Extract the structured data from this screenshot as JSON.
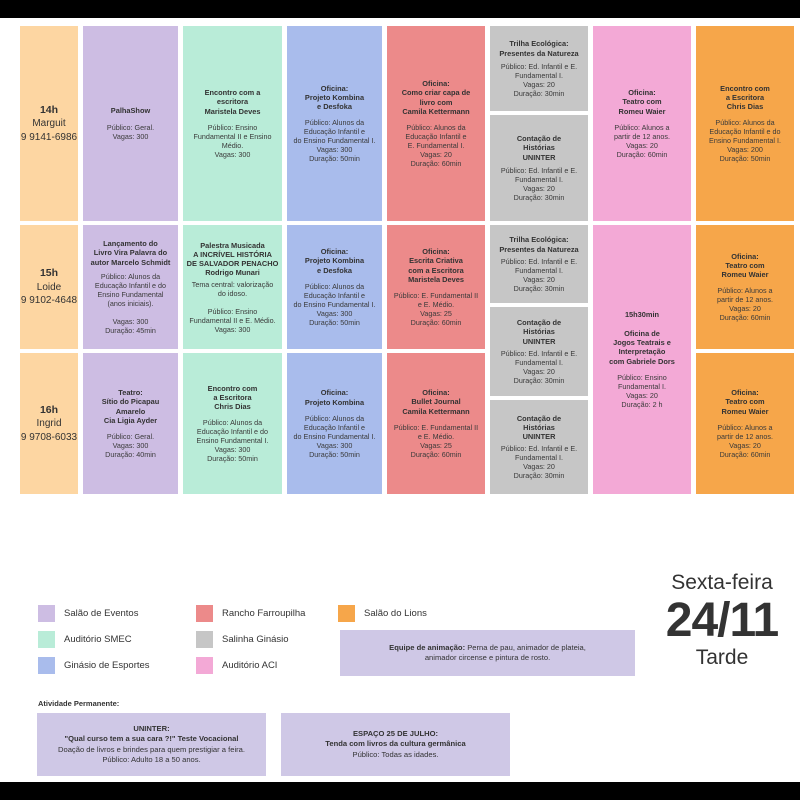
{
  "rows": [
    {
      "time": "14h",
      "name": "Marguit",
      "phone": "9 9141-6986"
    },
    {
      "time": "15h",
      "name": "Loide",
      "phone": "9 9102-4648"
    },
    {
      "time": "16h",
      "name": "Ingrid",
      "phone": "9 9708-6033"
    }
  ],
  "cells": {
    "c14_purple": {
      "title": "PalhaShow",
      "body": "Público: Geral.\nVagas: 300"
    },
    "c14_mint": {
      "title": "Encontro com a\nescritora\nMaristela Deves",
      "body": "Público: Ensino\nFundamental II e Ensino\nMédio.\nVagas: 300"
    },
    "c14_blue": {
      "title": "Oficina:\nProjeto Kombina\ne Desfoka",
      "body": "Público: Alunos da\nEducação Infantil e\ndo Ensino Fundamental I.\nVagas: 300\nDuração: 50min"
    },
    "c14_red": {
      "title": "Oficina:\nComo criar capa de\nlivro com\nCamila Kettermann",
      "body": "Público: Alunos da\nEducação Infantil e\nE. Fundamental I.\nVagas: 20\nDuração: 60min"
    },
    "c14_gray1": {
      "title": "Trilha Ecológica:\nPresentes da Natureza",
      "body": "Público: Ed. Infantil e E.\nFundamental I.\nVagas: 20\nDuração: 30min"
    },
    "c14_gray2": {
      "title": "Contação de\nHistórias\nUNINTER",
      "body": "Público: Ed. Infantil e E.\nFundamental I.\nVagas: 20\nDuração: 30min"
    },
    "c14_pink": {
      "title": "Oficina:\nTeatro com\nRomeu Waier",
      "body": "Público: Alunos a\npartir de 12 anos.\nVagas: 20\nDuração: 60min"
    },
    "c14_orange": {
      "title": "Encontro com\na Escritora\nChris Dias",
      "body": "Público: Alunos da\nEducação Infantil e do\nEnsino Fundamental I.\nVagas: 200\nDuração: 50min"
    },
    "c15_purple": {
      "title": "Lançamento do\nLivro Vira Palavra do\nautor Marcelo Schmidt",
      "body": "Público: Alunos da\nEducação Infantil e do\nEnsino Fundamental\n(anos iniciais).\n\nVagas: 300\nDuração: 45min"
    },
    "c15_mint": {
      "title": "Palestra Musicada\nA INCRÍVEL HISTÓRIA\nDE SALVADOR PENACHO\nRodrigo Munari",
      "body": "Tema central: valorização\ndo idoso.\n\nPúblico: Ensino\nFundamental II e E. Médio.\nVagas: 300"
    },
    "c15_blue": {
      "title": "Oficina:\nProjeto Kombina\ne Desfoka",
      "body": "Público: Alunos da\nEducação Infantil e\ndo Ensino Fundamental I.\nVagas: 300\nDuração: 50min"
    },
    "c15_red": {
      "title": "Oficina:\nEscrita Criativa\ncom a Escritora\nMaristela Deves",
      "body": "Público: E. Fundamental II\ne E. Médio.\nVagas: 25\nDuração: 60min"
    },
    "c15_gray1": {
      "title": "Trilha Ecológica:\nPresentes da Natureza",
      "body": "Público: Ed. Infantil e E.\nFundamental I.\nVagas: 20\nDuração: 30min"
    },
    "c15_gray2": {
      "title": "Contação de\nHistórias\nUNINTER",
      "body": "Público: Ed. Infantil e E.\nFundamental I.\nVagas: 20\nDuração: 30min"
    },
    "c1516_pink": {
      "title": "15h30min\n\nOficina de\nJogos Teatrais e\nInterpretação\ncom Gabriele Dors",
      "body": "Público: Ensino\nFundamental I.\nVagas: 20\nDuração: 2 h"
    },
    "c15_orange": {
      "title": "Oficina:\nTeatro com\nRomeu Waier",
      "body": "Público: Alunos a\npartir de 12 anos.\nVagas: 20\nDuração: 60min"
    },
    "c16_purple": {
      "title": "Teatro:\nSítio do Picapau\nAmarelo\nCia Ligia Ayder",
      "body": "Público: Geral.\nVagas: 300\nDuração: 40min"
    },
    "c16_mint": {
      "title": "Encontro com\na Escritora\nChris Dias",
      "body": "Público: Alunos da\nEducação Infantil e do\nEnsino Fundamental I.\nVagas: 300\nDuração: 50min"
    },
    "c16_blue": {
      "title": "Oficina:\nProjeto Kombina",
      "body": "Público: Alunos da\nEducação Infantil e\ndo Ensino Fundamental I.\nVagas: 300\nDuração: 50min"
    },
    "c16_red": {
      "title": "Oficina:\nBullet Journal\nCamila Kettermann",
      "body": "Público: E. Fundamental II\ne E. Médio.\nVagas: 25\nDuração: 60min"
    },
    "c16_gray": {
      "title": "Contação de\nHistórias\nUNINTER",
      "body": "Público: Ed. Infantil e E.\nFundamental I.\nVagas: 20\nDuração: 30min"
    },
    "c16_orange": {
      "title": "Oficina:\nTeatro com\nRomeu Waier",
      "body": "Público: Alunos a\npartir de 12 anos.\nVagas: 20\nDuração: 60min"
    }
  },
  "legend": [
    {
      "label": "Salão de Eventos",
      "color": "#cdbde3"
    },
    {
      "label": "Auditório SMEC",
      "color": "#b9ecd8"
    },
    {
      "label": "Ginásio de Esportes",
      "color": "#a9bcec"
    },
    {
      "label": "Rancho Farroupilha",
      "color": "#ec8a8a"
    },
    {
      "label": "Salinha Ginásio",
      "color": "#c6c6c6"
    },
    {
      "label": "Auditório ACI",
      "color": "#f3a9d6"
    },
    {
      "label": "Salão do Lions",
      "color": "#f6a64a"
    }
  ],
  "equipe": {
    "title": "Equipe de animação:",
    "text": " Perna de pau, animador de plateia,\nanimador circense e pintura de rosto."
  },
  "date": {
    "weekday": "Sexta-feira",
    "day": "24/11",
    "period": "Tarde"
  },
  "permanent": {
    "label": "Atividade Permanente:",
    "uninter": {
      "title": "UNINTER:\n\"Qual curso tem a sua cara ?!\" Teste Vocacional",
      "body": "Doação de livros e brindes para quem prestigiar a feira.\nPúblico: Adulto 18 a 50 anos."
    },
    "espaco": {
      "title": "ESPAÇO 25 DE JULHO:\nTenda com livros da cultura germânica",
      "body": "Público: Todas as idades."
    }
  }
}
